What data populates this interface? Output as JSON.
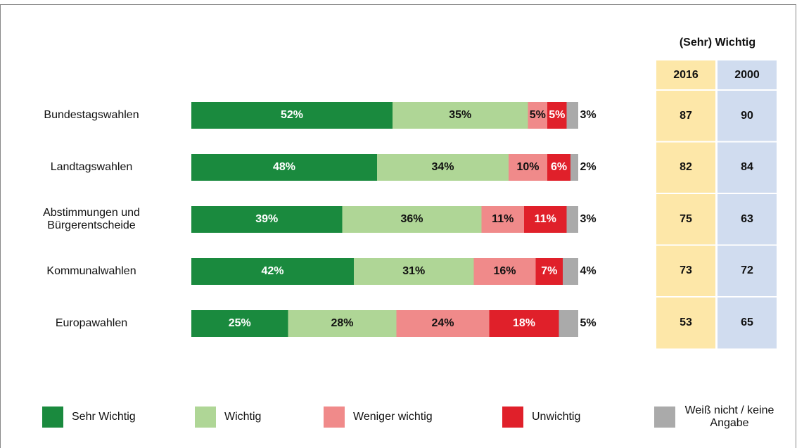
{
  "chart_data": {
    "type": "bar",
    "orientation": "horizontal",
    "stacked": true,
    "categories": [
      "Bundestagswahlen",
      "Landtagswahlen",
      "Abstimmungen und Bürgerentscheide",
      "Kommunalwahlen",
      "Europawahlen"
    ],
    "xlim": [
      0,
      100
    ],
    "series": [
      {
        "name": "Sehr Wichtig",
        "color": "#1a8a3e",
        "values": [
          52,
          48,
          39,
          42,
          25
        ],
        "value_labels": [
          "52%",
          "48%",
          "39%",
          "42%",
          "25%"
        ]
      },
      {
        "name": "Wichtig",
        "color": "#afd696",
        "values": [
          35,
          34,
          36,
          31,
          28
        ],
        "value_labels": [
          "35%",
          "34%",
          "36%",
          "31%",
          "28%"
        ]
      },
      {
        "name": "Weniger wichtig",
        "color": "#f08a8a",
        "values": [
          5,
          10,
          11,
          16,
          24
        ],
        "value_labels": [
          "5%",
          "10%",
          "11%",
          "16%",
          "24%"
        ]
      },
      {
        "name": "Unwichtig",
        "color": "#e0202a",
        "values": [
          5,
          6,
          11,
          7,
          18
        ],
        "value_labels": [
          "5%",
          "6%",
          "11%",
          "7%",
          "18%"
        ]
      },
      {
        "name": "Weiß nicht / keine Angabe",
        "color": "#aaaaaa",
        "values": [
          3,
          2,
          3,
          4,
          5
        ],
        "value_labels": [
          "3%",
          "2%",
          "3%",
          "4%",
          "5%"
        ]
      }
    ]
  },
  "table": {
    "title": "(Sehr) Wichtig",
    "columns": [
      "2016",
      "2000"
    ],
    "colors": [
      "#fde7a8",
      "#d0dcef"
    ],
    "rows": [
      [
        87,
        90
      ],
      [
        82,
        84
      ],
      [
        75,
        63
      ],
      [
        73,
        72
      ],
      [
        53,
        65
      ]
    ]
  }
}
